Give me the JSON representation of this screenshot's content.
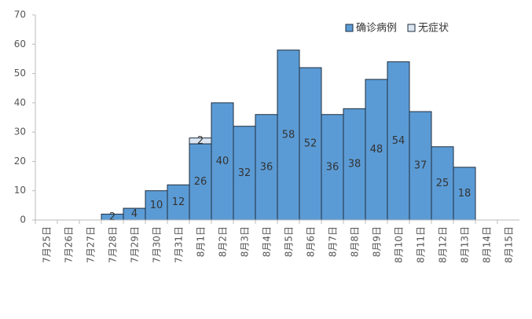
{
  "chart_data": {
    "type": "stacked_bar",
    "categories": [
      "7月25日",
      "7月26日",
      "7月27日",
      "7月28日",
      "7月29日",
      "7月30日",
      "7月31日",
      "8月1日",
      "8月2日",
      "8月3日",
      "8月4日",
      "8月5日",
      "8月6日",
      "8月7日",
      "8月8日",
      "8月9日",
      "8月10日",
      "8月11日",
      "8月12日",
      "8月13日",
      "8月14日",
      "8月15日"
    ],
    "series": [
      {
        "name": "确诊病例",
        "color": "#5b9bd5",
        "values": [
          0,
          0,
          0,
          2,
          4,
          10,
          12,
          26,
          40,
          32,
          36,
          58,
          52,
          36,
          38,
          48,
          54,
          37,
          25,
          18,
          0,
          0
        ]
      },
      {
        "name": "无症状",
        "color": "#dce6f2",
        "values": [
          0,
          0,
          0,
          0,
          0,
          0,
          0,
          2,
          0,
          0,
          0,
          0,
          0,
          0,
          0,
          0,
          0,
          0,
          0,
          0,
          0,
          0
        ]
      }
    ],
    "ylim": [
      0,
      70
    ],
    "yticks": [
      0,
      10,
      20,
      30,
      40,
      50,
      60,
      70
    ],
    "legend": "top-right"
  }
}
